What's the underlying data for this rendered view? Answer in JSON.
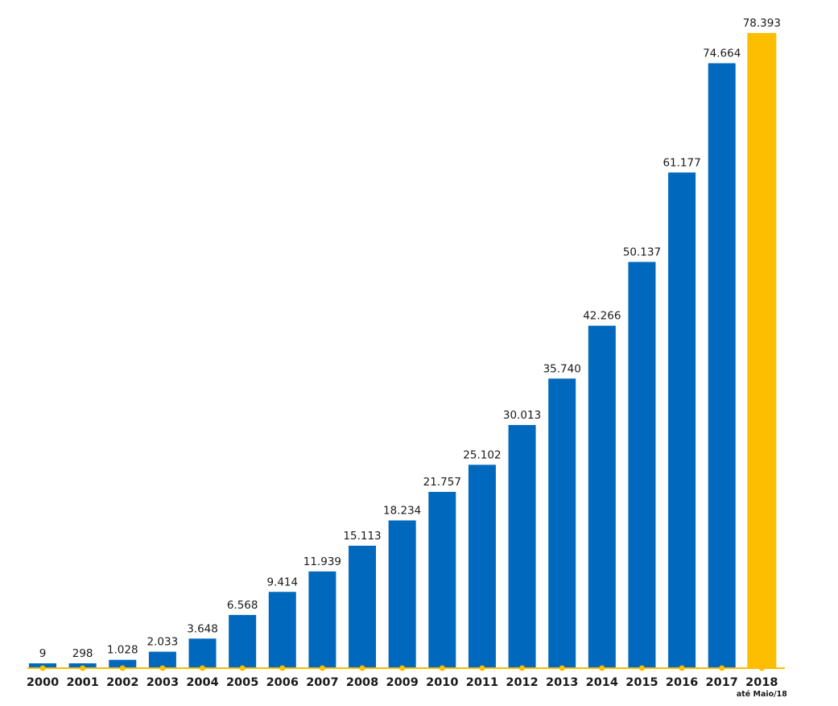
{
  "chart_data": {
    "type": "bar",
    "title": "",
    "xlabel": "",
    "ylabel": "",
    "ylim": [
      0,
      78393
    ],
    "grid": false,
    "legend": "none",
    "colors": {
      "bar": "#0068bd",
      "highlight": "#fdbd00",
      "axis": "#fdbd00",
      "text": "#1a1a1a"
    },
    "categories": [
      "2000",
      "2001",
      "2002",
      "2003",
      "2004",
      "2005",
      "2006",
      "2007",
      "2008",
      "2009",
      "2010",
      "2011",
      "2012",
      "2013",
      "2014",
      "2015",
      "2016",
      "2017",
      "2018"
    ],
    "values": [
      9,
      298,
      1028,
      2033,
      3648,
      6568,
      9414,
      11939,
      15113,
      18234,
      21757,
      25102,
      30013,
      35740,
      42266,
      50137,
      61177,
      74664,
      78393
    ],
    "value_labels": [
      "9",
      "298",
      "1.028",
      "2.033",
      "3.648",
      "6.568",
      "9.414",
      "11.939",
      "15.113",
      "18.234",
      "21.757",
      "25.102",
      "30.013",
      "35.740",
      "42.266",
      "50.137",
      "61.177",
      "74.664",
      "78.393"
    ],
    "highlight_category": "2018",
    "category_notes": {
      "2018": "até Maio/18"
    }
  }
}
